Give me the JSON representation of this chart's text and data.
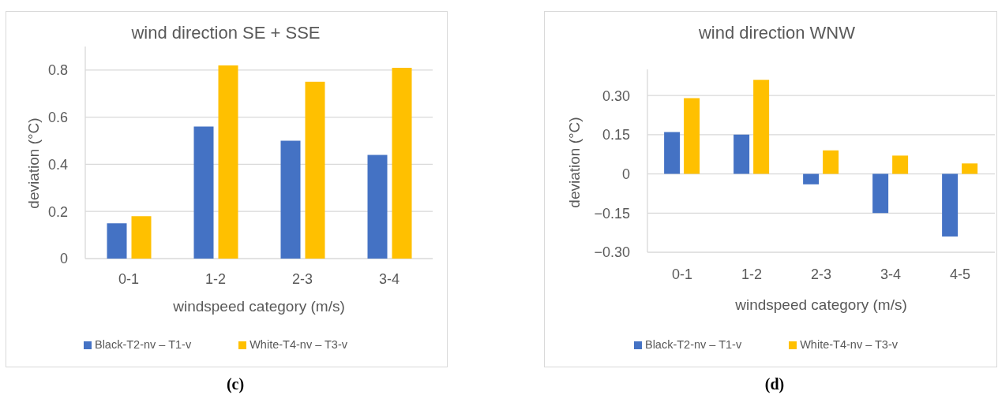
{
  "chart_data": [
    {
      "type": "bar",
      "title": "wind direction SE + SSE",
      "xlabel": "windspeed category (m/s)",
      "ylabel": "deviation (°C)",
      "categories": [
        "0-1",
        "1-2",
        "2-3",
        "3-4"
      ],
      "series": [
        {
          "name": "Black-T2-nv – T1-v",
          "color": "#4472c4",
          "values": [
            0.15,
            0.56,
            0.5,
            0.44
          ]
        },
        {
          "name": "White-T4-nv – T3-v",
          "color": "#ffc000",
          "values": [
            0.18,
            0.82,
            0.75,
            0.81
          ]
        }
      ],
      "ylim": [
        0,
        0.9
      ],
      "yticks": [
        0,
        0.2,
        0.4,
        0.6,
        0.8
      ],
      "grid": "y",
      "legend": "bottom",
      "annotations": [
        "(c)"
      ]
    },
    {
      "type": "bar",
      "title": "wind direction WNW",
      "xlabel": "windspeed category (m/s)",
      "ylabel": "deviation (°C)",
      "categories": [
        "0-1",
        "1-2",
        "2-3",
        "3-4",
        "4-5"
      ],
      "series": [
        {
          "name": "Black-T2-nv – T1-v",
          "color": "#4472c4",
          "values": [
            0.16,
            0.15,
            -0.04,
            -0.15,
            -0.24
          ]
        },
        {
          "name": "White-T4-nv – T3-v",
          "color": "#ffc000",
          "values": [
            0.29,
            0.36,
            0.09,
            0.07,
            0.04
          ]
        }
      ],
      "ylim": [
        -0.3,
        0.4
      ],
      "yticks": [
        {
          "value": -0.3,
          "label": "−0.30"
        },
        {
          "value": -0.15,
          "label": "−0.15"
        },
        0,
        0.15,
        {
          "value": 0.3,
          "label": "0.30"
        }
      ],
      "grid": "y",
      "legend": "bottom",
      "annotations": [
        "(d)"
      ]
    }
  ]
}
